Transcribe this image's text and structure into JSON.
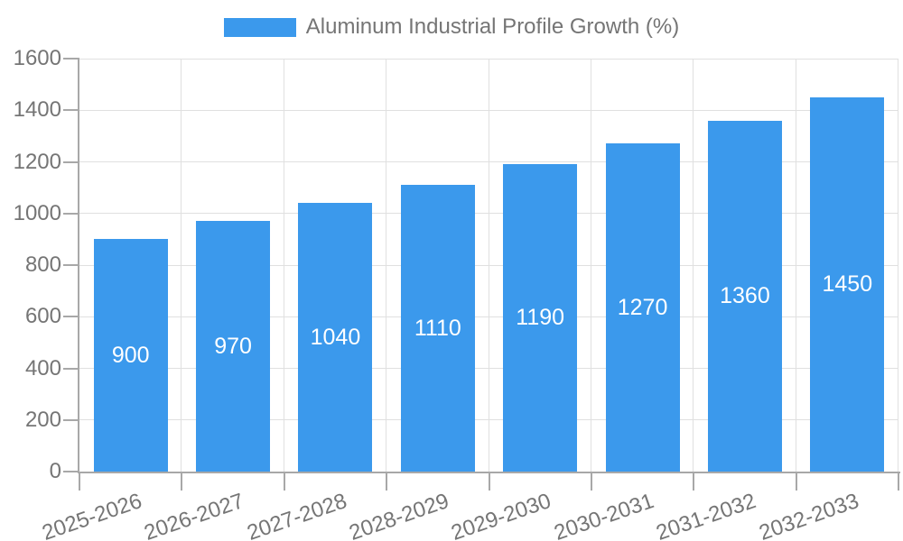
{
  "chart_data": {
    "type": "bar",
    "title": "",
    "legend": {
      "label": "Aluminum Industrial Profile Growth (%)",
      "position": "top-center"
    },
    "categories": [
      "2025-2026",
      "2026-2027",
      "2027-2028",
      "2028-2029",
      "2029-2030",
      "2030-2031",
      "2031-2032",
      "2032-2033"
    ],
    "series": [
      {
        "name": "Aluminum Industrial Profile Growth (%)",
        "values": [
          900,
          970,
          1040,
          1110,
          1190,
          1270,
          1360,
          1450
        ]
      }
    ],
    "xlabel": "",
    "ylabel": "",
    "ylim": [
      0,
      1600
    ],
    "yticks": [
      0,
      200,
      400,
      600,
      800,
      1000,
      1200,
      1400,
      1600
    ],
    "grid": true,
    "xtick_rotation_deg": -19,
    "value_labels": {
      "position": "inside-center"
    },
    "colors": {
      "bar": "#3b99ec",
      "axis_text": "#757575",
      "gridline": "#e0e0e0",
      "axis_line": "#a8a8a8",
      "value_label_text": "#ffffff",
      "background": "#ffffff"
    }
  }
}
